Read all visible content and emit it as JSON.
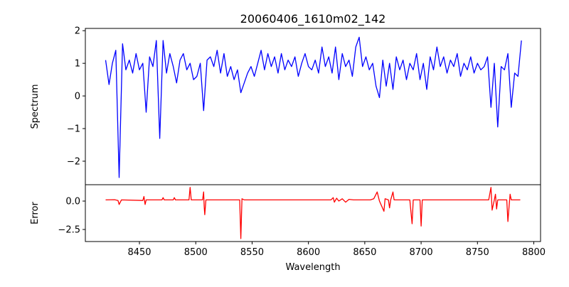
{
  "chart_data": [
    {
      "type": "line",
      "title": "20060406_1610m02_142",
      "xlabel": "",
      "ylabel": "Spectrum",
      "xlim": [
        8402,
        8806
      ],
      "ylim": [
        -2.72,
        2.07
      ],
      "yticks": [
        2,
        1,
        0,
        -1,
        -2
      ],
      "ytick_labels": [
        "2",
        "1",
        "0",
        "−1",
        "−2"
      ],
      "color": "#0000ff",
      "series": [
        {
          "name": "Spectrum",
          "x_start": 8420,
          "x_step": 3,
          "values": [
            1.1,
            0.35,
            1.0,
            1.4,
            -2.5,
            1.6,
            0.8,
            1.1,
            0.7,
            1.3,
            0.8,
            1.0,
            -0.5,
            1.2,
            0.9,
            1.7,
            -1.3,
            1.7,
            0.7,
            1.3,
            0.9,
            0.4,
            1.1,
            1.3,
            0.8,
            1.0,
            0.5,
            0.6,
            1.0,
            -0.45,
            1.1,
            1.2,
            0.9,
            1.4,
            0.7,
            1.3,
            0.6,
            0.9,
            0.5,
            0.8,
            0.1,
            0.4,
            0.7,
            0.9,
            0.6,
            1.0,
            1.4,
            0.8,
            1.3,
            0.9,
            1.2,
            0.7,
            1.3,
            0.8,
            1.1,
            0.9,
            1.2,
            0.6,
            1.0,
            1.3,
            0.9,
            0.8,
            1.1,
            0.7,
            1.5,
            0.9,
            1.2,
            0.7,
            1.5,
            0.5,
            1.3,
            0.9,
            1.1,
            0.6,
            1.5,
            1.8,
            0.9,
            1.2,
            0.8,
            1.0,
            0.3,
            -0.05,
            1.1,
            0.3,
            1.0,
            0.2,
            1.2,
            0.8,
            1.1,
            0.5,
            1.0,
            0.8,
            1.3,
            0.5,
            1.0,
            0.2,
            1.2,
            0.8,
            1.5,
            0.9,
            1.2,
            0.7,
            1.1,
            0.9,
            1.3,
            0.6,
            1.0,
            0.8,
            1.2,
            0.7,
            1.0,
            0.8,
            0.9,
            1.2,
            -0.35,
            1.0,
            -0.95,
            0.9,
            0.8,
            1.3,
            -0.35,
            0.7,
            0.6,
            1.7
          ]
        }
      ]
    },
    {
      "type": "line",
      "title": "",
      "xlabel": "Wavelength",
      "ylabel": "Error",
      "xlim": [
        8402,
        8806
      ],
      "ylim": [
        -3.56,
        1.44
      ],
      "xticks": [
        8450,
        8500,
        8550,
        8600,
        8650,
        8700,
        8750,
        8800
      ],
      "xtick_labels": [
        "8450",
        "8500",
        "8550",
        "8600",
        "8650",
        "8700",
        "8750",
        "8800"
      ],
      "yticks": [
        0,
        -2.5
      ],
      "ytick_labels": [
        "0.0",
        "−2.5"
      ],
      "color": "#ff0000",
      "series": [
        {
          "name": "Error",
          "points": [
            [
              8420,
              0.1
            ],
            [
              8428,
              0.12
            ],
            [
              8431,
              0.05
            ],
            [
              8432,
              -0.3
            ],
            [
              8434,
              0.1
            ],
            [
              8453,
              0.05
            ],
            [
              8454,
              0.4
            ],
            [
              8455,
              -0.3
            ],
            [
              8456,
              0.1
            ],
            [
              8470,
              0.1
            ],
            [
              8471,
              0.3
            ],
            [
              8472,
              0.1
            ],
            [
              8480,
              0.1
            ],
            [
              8481,
              0.3
            ],
            [
              8482,
              0.1
            ],
            [
              8494,
              0.1
            ],
            [
              8495,
              1.2
            ],
            [
              8496,
              0.1
            ],
            [
              8506,
              0.1
            ],
            [
              8507,
              0.8
            ],
            [
              8507.5,
              -0.5
            ],
            [
              8508,
              -1.2
            ],
            [
              8509,
              0.1
            ],
            [
              8539,
              0.1
            ],
            [
              8540,
              -3.3
            ],
            [
              8541,
              0.2
            ],
            [
              8543,
              0.1
            ],
            [
              8620,
              0.1
            ],
            [
              8622,
              0.3
            ],
            [
              8623,
              -0.1
            ],
            [
              8625,
              0.25
            ],
            [
              8627,
              0.0
            ],
            [
              8630,
              0.2
            ],
            [
              8633,
              -0.1
            ],
            [
              8636,
              0.15
            ],
            [
              8640,
              0.1
            ],
            [
              8655,
              0.1
            ],
            [
              8658,
              0.2
            ],
            [
              8661,
              0.8
            ],
            [
              8663,
              0.0
            ],
            [
              8667,
              -0.9
            ],
            [
              8668,
              0.2
            ],
            [
              8671,
              0.1
            ],
            [
              8672,
              -0.6
            ],
            [
              8673,
              0.1
            ],
            [
              8675,
              0.8
            ],
            [
              8676,
              0.1
            ],
            [
              8690,
              0.1
            ],
            [
              8692,
              -2.0
            ],
            [
              8693,
              0.1
            ],
            [
              8699,
              0.1
            ],
            [
              8700,
              -2.2
            ],
            [
              8701,
              0.1
            ],
            [
              8760,
              0.1
            ],
            [
              8762,
              1.2
            ],
            [
              8763,
              -0.8
            ],
            [
              8765,
              0.1
            ],
            [
              8766,
              0.6
            ],
            [
              8767,
              -0.7
            ],
            [
              8768,
              0.1
            ],
            [
              8776,
              0.1
            ],
            [
              8777,
              -1.8
            ],
            [
              8778,
              -0.6
            ],
            [
              8779,
              0.6
            ],
            [
              8780,
              0.1
            ],
            [
              8788,
              0.1
            ]
          ]
        }
      ]
    }
  ]
}
